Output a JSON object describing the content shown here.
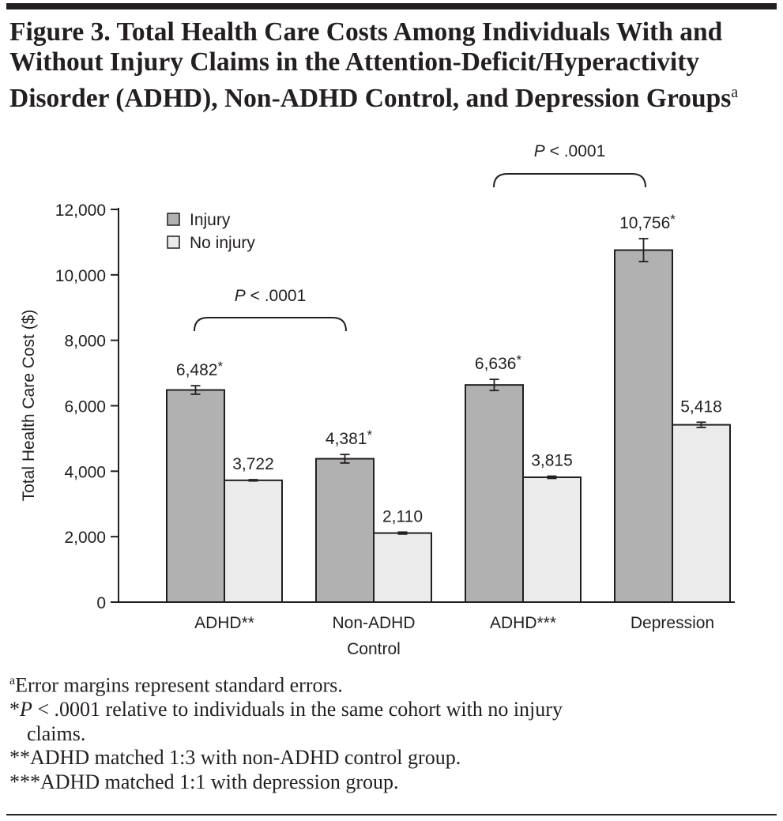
{
  "title": "Figure 3. Total Health Care Costs Among Individuals With and Without Injury Claims in the Attention-Deficit/Hyperactivity Disorder (ADHD), Non-ADHD Control, and Depression Groups",
  "title_superscript": "a",
  "footnotes": {
    "a_mark": "a",
    "a": "Error margins represent standard errors.",
    "star_prefix": "*",
    "star_p": "P",
    "star_rest_line1": " < .0001 relative to individuals in the same cohort with no injury",
    "star_rest_line2": "claims.",
    "double_star": "**ADHD matched 1:3 with non-ADHD control group.",
    "triple_star": "***ADHD matched 1:1 with depression group."
  },
  "chart_data": {
    "type": "bar",
    "ylabel": "Total Health Care Cost ($)",
    "ylim": [
      0,
      12000
    ],
    "yticks": [
      "0",
      "2,000",
      "4,000",
      "6,000",
      "8,000",
      "10,000",
      "12,000"
    ],
    "ytick_values": [
      0,
      2000,
      4000,
      6000,
      8000,
      10000,
      12000
    ],
    "categories": [
      [
        "ADHD**"
      ],
      [
        "Non-ADHD",
        "Control"
      ],
      [
        "ADHD***"
      ],
      [
        "Depression"
      ]
    ],
    "legend_position": "top-left",
    "grid": false,
    "series": [
      {
        "name": "Injury",
        "color": "#b1b1b1",
        "values": [
          6482,
          4381,
          6636,
          10756
        ],
        "errors": [
          130,
          130,
          170,
          350
        ],
        "labels": [
          "6,482*",
          "4,381*",
          "6,636*",
          "10,756*"
        ]
      },
      {
        "name": "No injury",
        "color": "#ebebeb",
        "values": [
          3722,
          2110,
          3815,
          5418
        ],
        "errors": [
          20,
          30,
          35,
          80
        ],
        "labels": [
          "3,722",
          "2,110",
          "3,815",
          "5,418"
        ]
      }
    ],
    "annotations": [
      {
        "text_italic": "P",
        "text": " < .0001",
        "between": [
          "ADHD**",
          "Non-ADHD Control"
        ]
      },
      {
        "text_italic": "P",
        "text": " < .0001",
        "between": [
          "ADHD***",
          "Depression"
        ]
      }
    ]
  }
}
